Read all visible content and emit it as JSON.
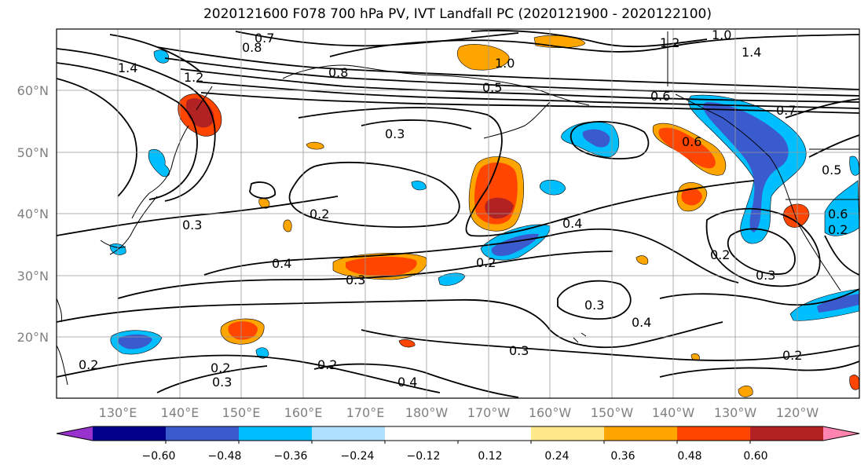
{
  "title": "2020121600 F078 700 hPa PV, IVT Landfall PC (2020121900 - 2020122100)",
  "lat_labels": [
    "60°N",
    "50°N",
    "40°N",
    "30°N",
    "20°N"
  ],
  "lon_labels": [
    "130°E",
    "140°E",
    "150°E",
    "160°E",
    "170°E",
    "180°W",
    "170°W",
    "160°W",
    "150°W",
    "140°W",
    "130°W",
    "120°W"
  ],
  "colorbar": {
    "colors": [
      "#9932cc",
      "#00008b",
      "#3a5bcd",
      "#00bfff",
      "#b0e0ff",
      "#ffffff",
      "#ffffff",
      "#ffe98a",
      "#ffa500",
      "#ff4500",
      "#b22222",
      "#ff85b0"
    ],
    "tick_labels": [
      "−0.60",
      "−0.48",
      "−0.36",
      "−0.24",
      "−0.12",
      "0.12",
      "0.24",
      "0.36",
      "0.48",
      "0.60"
    ]
  },
  "contour_labels": [
    "0.7",
    "0.8",
    "1.4",
    "1.2",
    "1.0",
    "0.8",
    "0.5",
    "0.6",
    "0.3",
    "0.2",
    "0.3",
    "0.4",
    "0.3",
    "0.2",
    "0.4",
    "0.2",
    "0.3",
    "0.2",
    "0.3",
    "0.4",
    "0.3",
    "0.2",
    "0.6",
    "0.7",
    "0.5",
    "0.6",
    "1.0",
    "1.2",
    "1.4",
    "0.2",
    "0.3",
    "0.2",
    "0.4",
    "0.2"
  ],
  "icons": {
    "colorbar_left": "triangle-left-arrow",
    "colorbar_right": "triangle-right-arrow"
  }
}
